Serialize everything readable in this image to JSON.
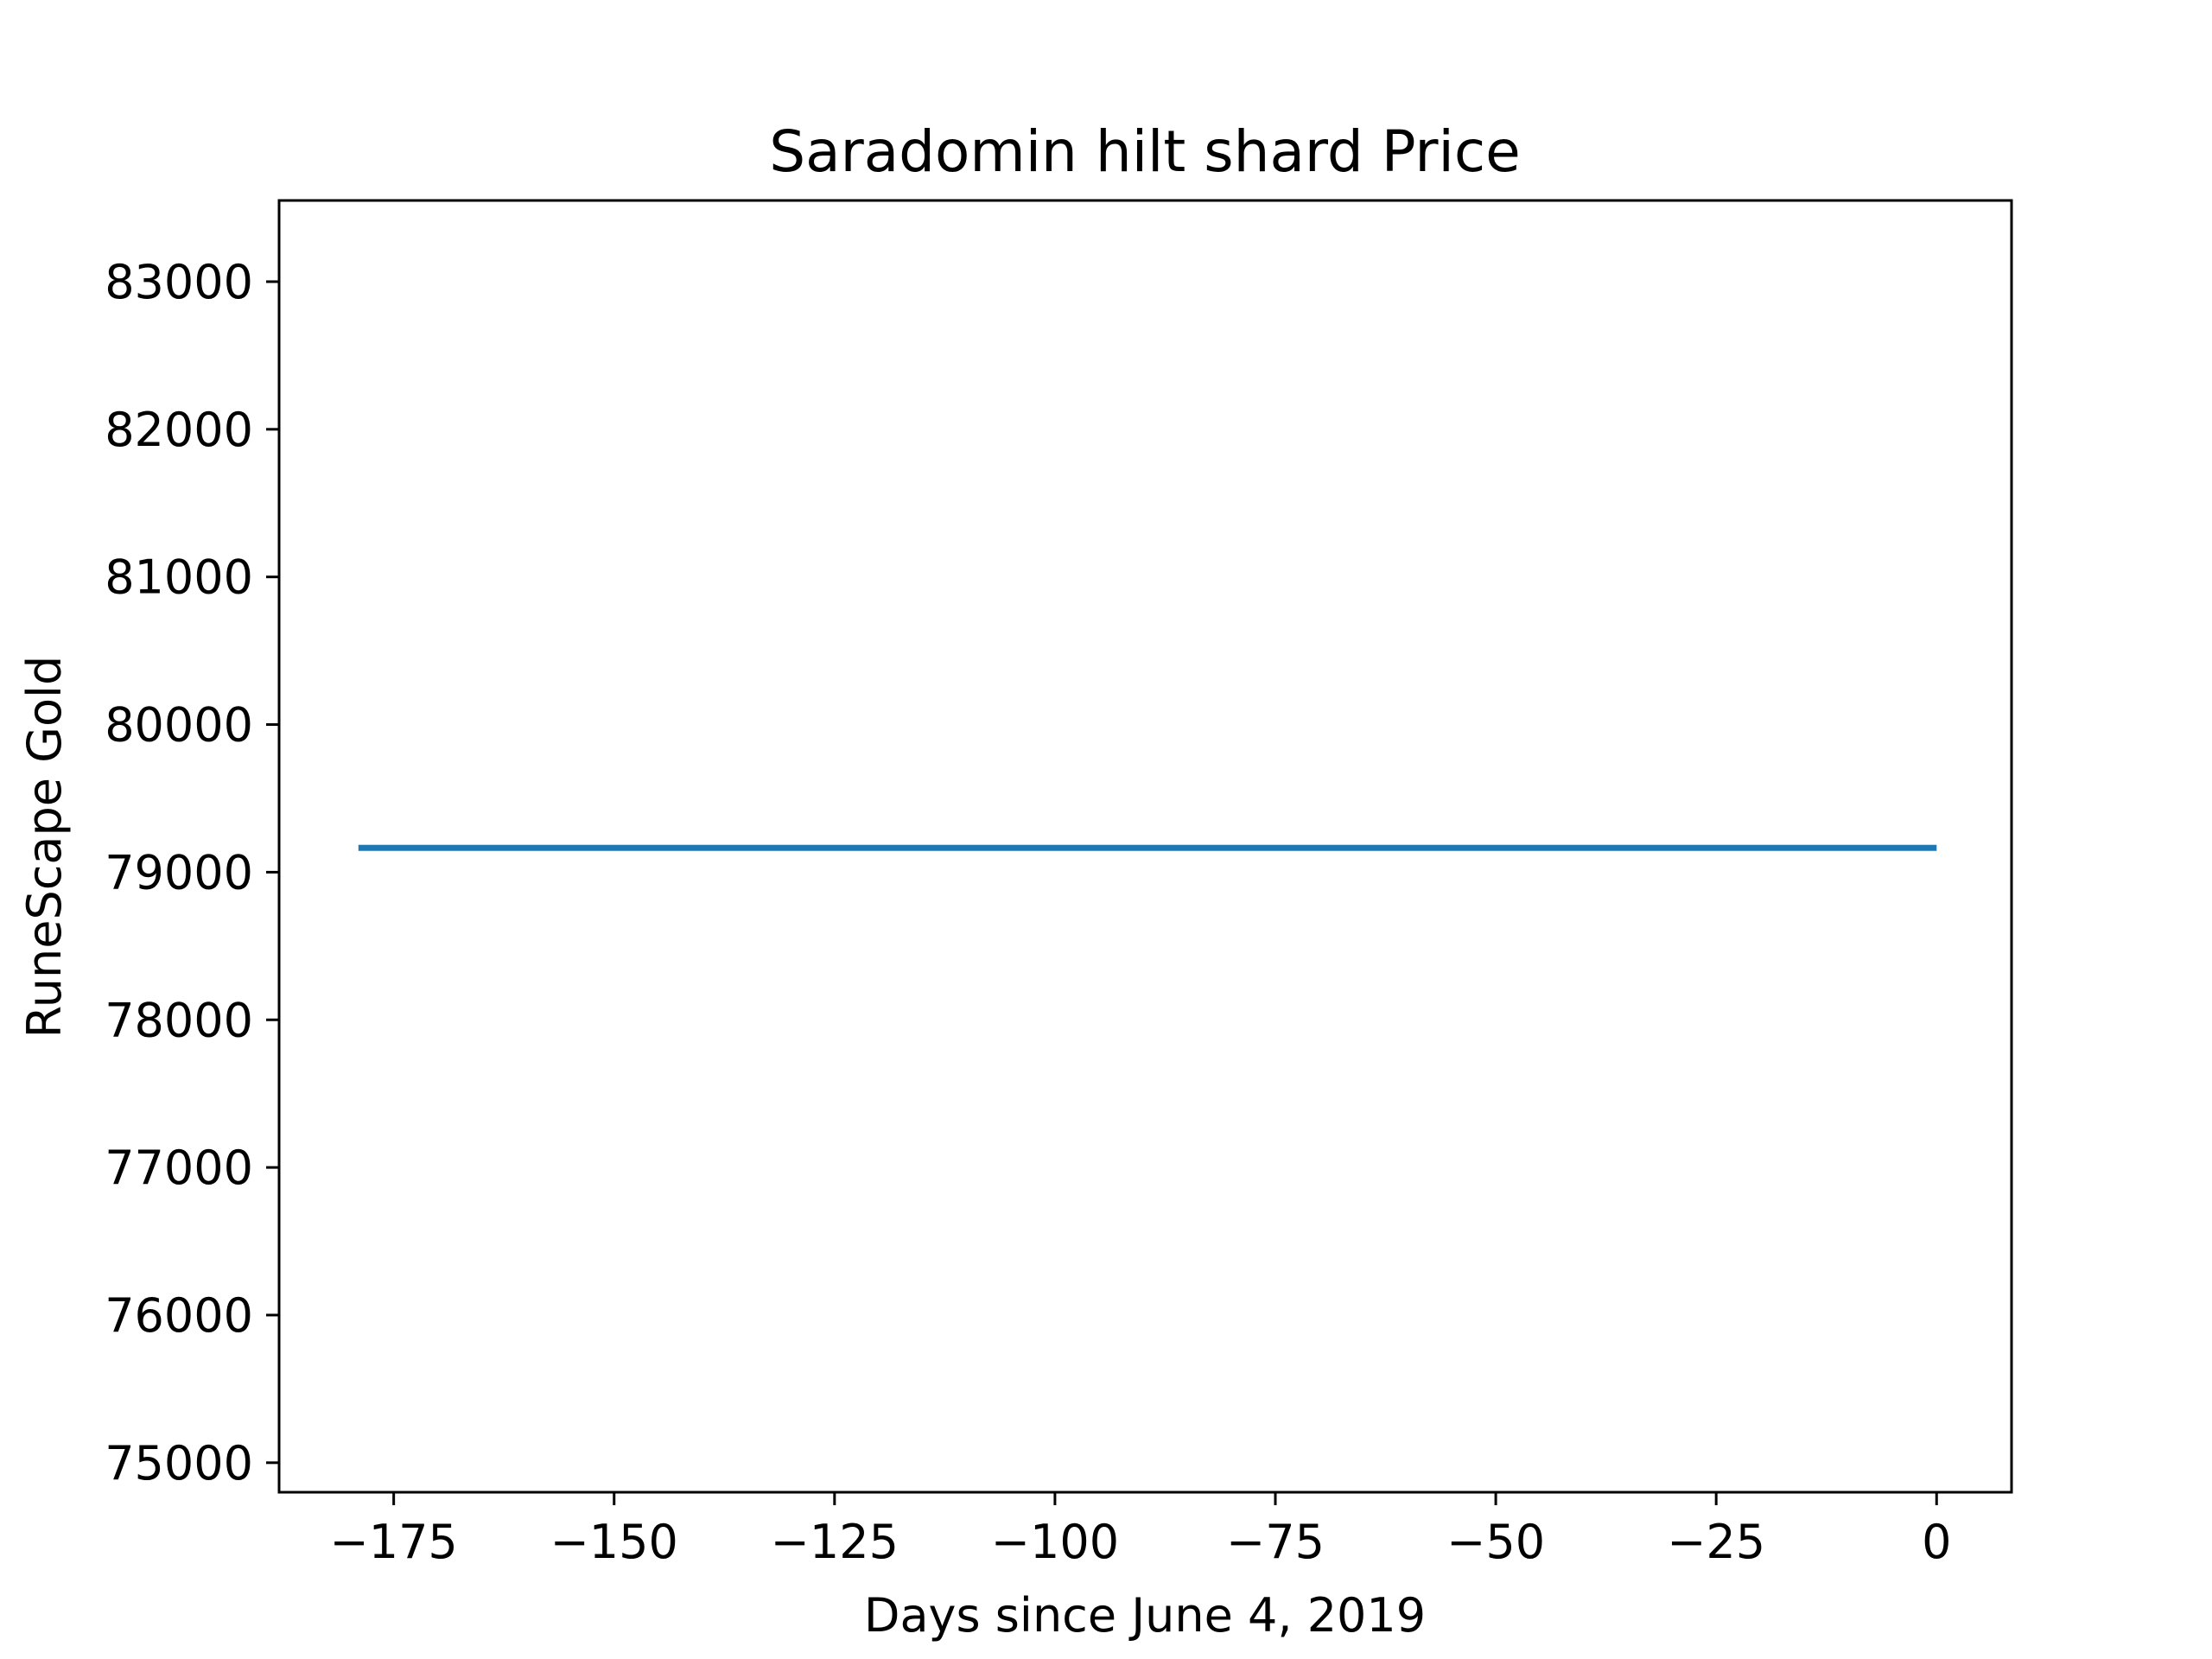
{
  "chart_data": {
    "type": "line",
    "title": "Saradomin hilt shard Price",
    "xlabel": "Days since June 4, 2019",
    "ylabel": "RuneScape Gold",
    "xlim": [
      -188,
      8.5
    ],
    "ylim": [
      74800,
      83550
    ],
    "x_ticks": [
      -175,
      -150,
      -125,
      -100,
      -75,
      -50,
      -25,
      0
    ],
    "x_tick_labels": [
      "−175",
      "−150",
      "−125",
      "−100",
      "−75",
      "−50",
      "−25",
      "0"
    ],
    "y_ticks": [
      75000,
      76000,
      77000,
      78000,
      79000,
      80000,
      81000,
      82000,
      83000
    ],
    "y_tick_labels": [
      "75000",
      "76000",
      "77000",
      "78000",
      "79000",
      "80000",
      "81000",
      "82000",
      "83000"
    ],
    "grid": false,
    "series": [
      {
        "color": "#1f77b4",
        "x": [
          -179,
          -150,
          -125,
          -100,
          -75,
          -50,
          -25,
          0
        ],
        "y": [
          79165,
          79165,
          79165,
          79165,
          79165,
          79165,
          79165,
          79165
        ]
      }
    ]
  }
}
